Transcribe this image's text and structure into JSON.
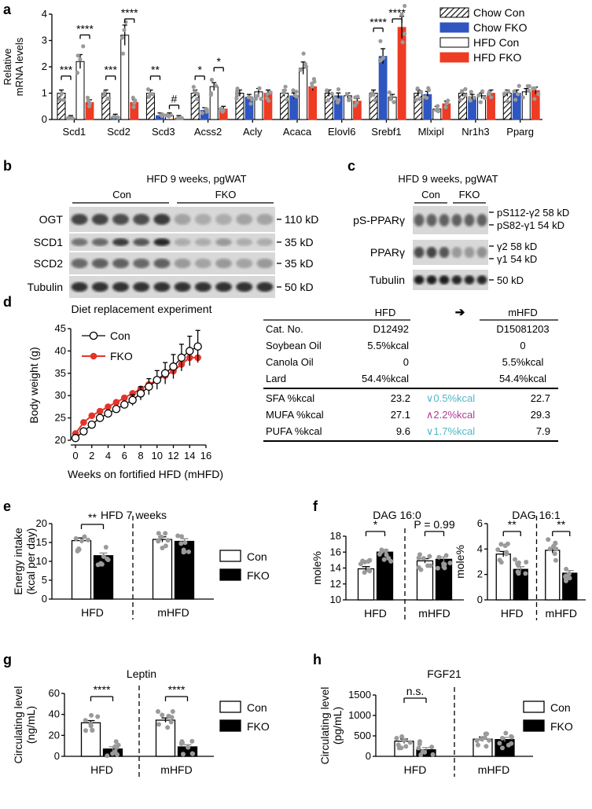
{
  "panel_labels": [
    "a",
    "b",
    "c",
    "d",
    "e",
    "f",
    "g",
    "h"
  ],
  "colors": {
    "chow_con": "#ffffff",
    "chow_fko": "#2f56c0",
    "hfd_con": "#ffffff",
    "hfd_fko": "#ee3b24",
    "dot": "#9a9a9a",
    "fko_line": "#e3342b",
    "up": "#b03a95",
    "down": "#4fb8c8"
  },
  "panel_a": {
    "ylabel": "Relative\nmRNA levels",
    "legend": [
      "Chow Con",
      "Chow FKO",
      "HFD Con",
      "HFD FKO"
    ],
    "chart_data": {
      "type": "bar",
      "ylim": [
        0,
        4
      ],
      "yticks": [
        "0",
        "1",
        "2",
        "3",
        "4"
      ],
      "categories": [
        "Scd1",
        "Scd2",
        "Scd3",
        "Acss2",
        "Acly",
        "Acaca",
        "Elovl6",
        "Srebf1",
        "Mlxipl",
        "Nr1h3",
        "Pparg"
      ],
      "series": [
        {
          "name": "Chow Con",
          "values": [
            1.0,
            1.0,
            1.0,
            1.0,
            1.0,
            1.0,
            1.0,
            1.0,
            1.0,
            1.0,
            1.0
          ]
        },
        {
          "name": "Chow FKO",
          "values": [
            0.05,
            0.1,
            0.15,
            0.35,
            0.85,
            0.9,
            0.9,
            2.4,
            0.95,
            0.85,
            1.0
          ]
        },
        {
          "name": "HFD Con",
          "values": [
            2.2,
            3.2,
            0.15,
            1.25,
            1.05,
            1.95,
            0.9,
            0.85,
            0.4,
            0.9,
            1.05
          ]
        },
        {
          "name": "HFD FKO",
          "values": [
            0.65,
            0.65,
            0.05,
            0.4,
            1.0,
            1.25,
            0.7,
            3.5,
            0.6,
            1.0,
            1.1
          ]
        }
      ],
      "significance": [
        {
          "cat": 0,
          "pair": "chow",
          "label": "***"
        },
        {
          "cat": 0,
          "pair": "hfd",
          "label": "****"
        },
        {
          "cat": 1,
          "pair": "chow",
          "label": "***"
        },
        {
          "cat": 1,
          "pair": "hfd",
          "label": "****"
        },
        {
          "cat": 2,
          "pair": "chow",
          "label": "**"
        },
        {
          "cat": 2,
          "pair": "hfd",
          "label": "#"
        },
        {
          "cat": 3,
          "pair": "chow",
          "label": "*"
        },
        {
          "cat": 3,
          "pair": "hfd",
          "label": "*"
        },
        {
          "cat": 7,
          "pair": "chow",
          "label": "****"
        },
        {
          "cat": 7,
          "pair": "hfd",
          "label": "****"
        }
      ]
    }
  },
  "panel_b": {
    "title": "HFD 9 weeks, pgWAT",
    "groups": [
      "Con",
      "FKO"
    ],
    "rows": [
      {
        "label": "OGT",
        "kd": "110 kD"
      },
      {
        "label": "SCD1",
        "kd": "35 kD"
      },
      {
        "label": "SCD2",
        "kd": "35 kD"
      },
      {
        "label": "Tubulin",
        "kd": "50 kD"
      }
    ]
  },
  "panel_c": {
    "title": "HFD 9 weeks, pgWAT",
    "groups": [
      "Con",
      "FKO"
    ],
    "rows": [
      {
        "label": "pS-PPARγ",
        "kd": [
          "pS112-γ2 58 kD",
          "pS82-γ1 54 kD"
        ]
      },
      {
        "label": "PPARγ",
        "kd": [
          "γ2 58 kD",
          "γ1 54 kD"
        ]
      },
      {
        "label": "Tubulin",
        "kd": [
          "50 kD"
        ]
      }
    ]
  },
  "panel_d": {
    "title": "Diet replacement experiment",
    "xlabel": "Weeks on fortified HFD (mHFD)",
    "ylabel": "Body weight (g)",
    "legend": [
      "Con",
      "FKO"
    ],
    "chart_data": {
      "type": "line",
      "xlim": [
        0,
        16
      ],
      "ylim": [
        20,
        45
      ],
      "xticks": [
        "0",
        "2",
        "4",
        "6",
        "8",
        "10",
        "12",
        "14",
        "16"
      ],
      "yticks": [
        "20",
        "25",
        "30",
        "35",
        "40",
        "45"
      ],
      "x": [
        0,
        1,
        2,
        3,
        4,
        5,
        6,
        7,
        8,
        9,
        10,
        11,
        12,
        13,
        14,
        15
      ],
      "series": [
        {
          "name": "Con",
          "values": [
            20.5,
            22.0,
            23.5,
            25.0,
            26.0,
            27.0,
            28.0,
            29.0,
            30.5,
            32.0,
            33.5,
            35.0,
            36.5,
            38.5,
            40.0,
            41.0
          ]
        },
        {
          "name": "FKO",
          "values": [
            21.5,
            24.0,
            25.5,
            26.5,
            27.5,
            28.5,
            29.5,
            30.5,
            31.5,
            32.5,
            33.5,
            34.5,
            35.5,
            37.0,
            38.5,
            38.5
          ]
        }
      ]
    },
    "table": {
      "headers": [
        "",
        "HFD",
        "➔",
        "mHFD"
      ],
      "rows": [
        [
          "Cat. No.",
          "D12492",
          "",
          "D15081203"
        ],
        [
          "Soybean Oil",
          "5.5%kcal",
          "",
          "0"
        ],
        [
          "Canola Oil",
          "0",
          "",
          "5.5%kcal"
        ],
        [
          "Lard",
          "54.4%kcal",
          "",
          "54.4%kcal"
        ],
        [
          "SFA %kcal",
          "23.2",
          "∨0.5%kcal",
          "22.7"
        ],
        [
          "MUFA %kcal",
          "27.1",
          "∧2.2%kcal",
          "29.3"
        ],
        [
          "PUFA %kcal",
          "9.6",
          "∨1.7%kcal",
          "7.9"
        ]
      ]
    }
  },
  "panel_e": {
    "title": "HFD 7 weeks",
    "ylabel": "Energy intake\n(kcal per day)",
    "legend": [
      "Con",
      "FKO"
    ],
    "chart_data": {
      "type": "bar",
      "ylim": [
        0,
        20
      ],
      "yticks": [
        "0",
        "5",
        "10",
        "15",
        "20"
      ],
      "categories": [
        "HFD",
        "mHFD"
      ],
      "series": [
        {
          "name": "Con",
          "values": [
            15.5,
            15.8
          ]
        },
        {
          "name": "FKO",
          "values": [
            11.5,
            15.3
          ]
        }
      ],
      "significance": [
        {
          "cat": 0,
          "label": "**"
        }
      ]
    }
  },
  "panel_f1": {
    "title": "DAG 16:0",
    "ylabel": "mole%",
    "chart_data": {
      "type": "bar",
      "ylim": [
        10,
        18
      ],
      "yticks": [
        "10",
        "12",
        "14",
        "16",
        "18"
      ],
      "categories": [
        "HFD",
        "mHFD"
      ],
      "series": [
        {
          "name": "Con",
          "values": [
            13.9,
            14.9
          ]
        },
        {
          "name": "FKO",
          "values": [
            16.0,
            15.1
          ]
        }
      ],
      "significance": [
        {
          "cat": 0,
          "label": "*"
        },
        {
          "cat": 1,
          "label": "P = 0.99"
        }
      ]
    }
  },
  "panel_f2": {
    "title": "DAG 16:1",
    "ylabel": "mole%",
    "chart_data": {
      "type": "bar",
      "ylim": [
        0,
        6
      ],
      "yticks": [
        "0",
        "2",
        "4",
        "6"
      ],
      "categories": [
        "HFD",
        "mHFD"
      ],
      "series": [
        {
          "name": "Con",
          "values": [
            3.6,
            3.9
          ]
        },
        {
          "name": "FKO",
          "values": [
            2.4,
            2.1
          ]
        }
      ],
      "significance": [
        {
          "cat": 0,
          "label": "**"
        },
        {
          "cat": 1,
          "label": "**"
        }
      ]
    }
  },
  "panel_g": {
    "title": "Leptin",
    "ylabel": "Circulating level\n(ng/mL)",
    "legend": [
      "Con",
      "FKO"
    ],
    "chart_data": {
      "type": "bar",
      "ylim": [
        0,
        60
      ],
      "yticks": [
        "0",
        "20",
        "40",
        "60"
      ],
      "categories": [
        "HFD",
        "mHFD"
      ],
      "series": [
        {
          "name": "Con",
          "values": [
            32,
            34.5
          ]
        },
        {
          "name": "FKO",
          "values": [
            7,
            9
          ]
        }
      ],
      "significance": [
        {
          "cat": 0,
          "label": "****"
        },
        {
          "cat": 1,
          "label": "****"
        }
      ]
    }
  },
  "panel_h": {
    "title": "FGF21",
    "ylabel": "Circulating level\n(pg/mL)",
    "legend": [
      "Con",
      "FKO"
    ],
    "chart_data": {
      "type": "bar",
      "ylim": [
        0,
        1500
      ],
      "yticks": [
        "0",
        "500",
        "1000",
        "1500"
      ],
      "categories": [
        "HFD",
        "mHFD"
      ],
      "series": [
        {
          "name": "Con",
          "values": [
            370,
            420
          ]
        },
        {
          "name": "FKO",
          "values": [
            160,
            410
          ]
        }
      ],
      "significance": [
        {
          "cat": 0,
          "label": "n.s."
        }
      ]
    }
  }
}
